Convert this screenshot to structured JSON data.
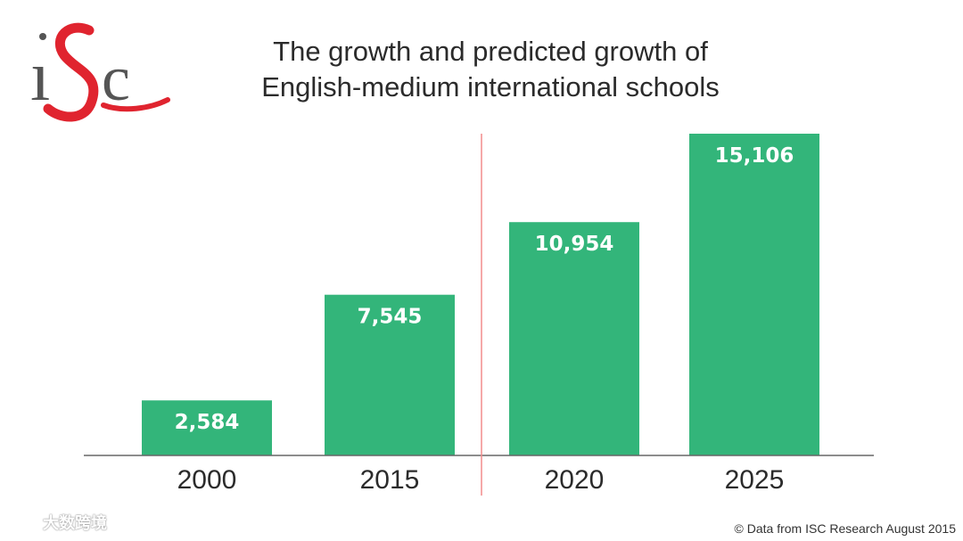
{
  "logo": {
    "text": "iSc",
    "colors": {
      "i": "#555555",
      "s": "#e0242f",
      "c": "#555555"
    }
  },
  "colors": {
    "bar": "#33b57a",
    "bar_label": "#ffffff",
    "axis": "#666666",
    "divider": "#f28b8b",
    "text": "#2b2b2b"
  },
  "chart_data": {
    "type": "bar",
    "title": [
      "The growth and predicted growth of",
      "English-medium international schools"
    ],
    "categories": [
      "2000",
      "2015",
      "2020",
      "2025"
    ],
    "values": [
      2584,
      7545,
      10954,
      15106
    ],
    "value_labels": [
      "2,584",
      "7,545",
      "10,954",
      "15,106"
    ],
    "ylim": [
      0,
      15106
    ],
    "grid": false,
    "divider_between": [
      "2015",
      "2020"
    ]
  },
  "footer": {
    "source": "© Data from ISC Research August 2015"
  },
  "watermark": {
    "text": "大数跨境",
    "icon": "lollipop-logo-icon"
  }
}
